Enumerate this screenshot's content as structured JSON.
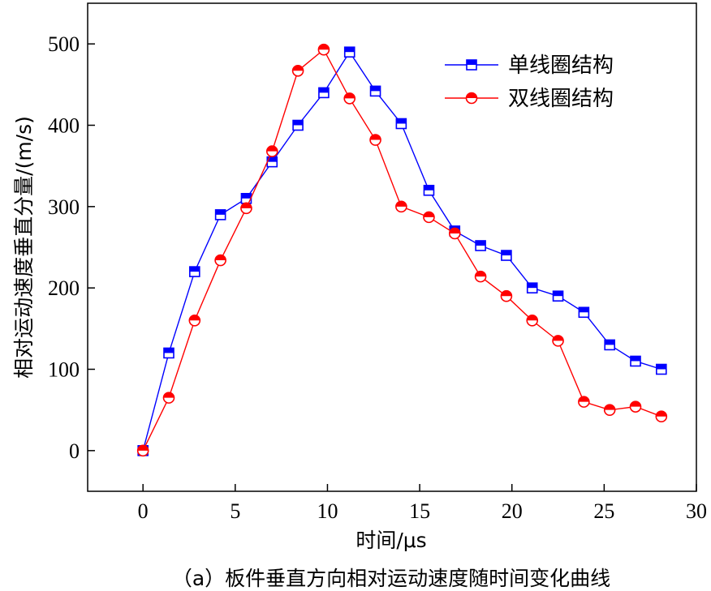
{
  "chart_data": {
    "type": "line",
    "xlabel": "时间/μs",
    "ylabel": "相对运动速度垂直分量/(m/s)",
    "caption": "（a）板件垂直方向相对运动速度随时间变化曲线",
    "xlim": [
      -3,
      30
    ],
    "ylim": [
      -50,
      550
    ],
    "xticks": [
      0,
      5,
      10,
      15,
      20,
      25,
      30
    ],
    "yticks": [
      0,
      100,
      200,
      300,
      400,
      500
    ],
    "grid": false,
    "legend_position": "top-right",
    "series": [
      {
        "name": "单线圈结构",
        "color": "#0000ff",
        "marker": "square",
        "x": [
          0,
          1.4,
          2.8,
          4.2,
          5.6,
          7.0,
          8.4,
          9.8,
          11.2,
          12.6,
          14.0,
          15.5,
          16.9,
          18.3,
          19.7,
          21.1,
          22.5,
          23.9,
          25.3,
          26.7,
          28.1
        ],
        "y": [
          0,
          120,
          220,
          290,
          310,
          355,
          400,
          440,
          490,
          442,
          402,
          320,
          270,
          252,
          240,
          200,
          190,
          170,
          130,
          110,
          100
        ]
      },
      {
        "name": "双线圈结构",
        "color": "#ff0000",
        "marker": "circle",
        "x": [
          0,
          1.4,
          2.8,
          4.2,
          5.6,
          7.0,
          8.4,
          9.8,
          11.2,
          12.6,
          14.0,
          15.5,
          16.9,
          18.3,
          19.7,
          21.1,
          22.5,
          23.9,
          25.3,
          26.7,
          28.1
        ],
        "y": [
          0,
          65,
          160,
          234,
          298,
          368,
          467,
          493,
          433,
          382,
          300,
          287,
          267,
          214,
          190,
          160,
          135,
          60,
          50,
          54,
          42
        ]
      }
    ]
  }
}
